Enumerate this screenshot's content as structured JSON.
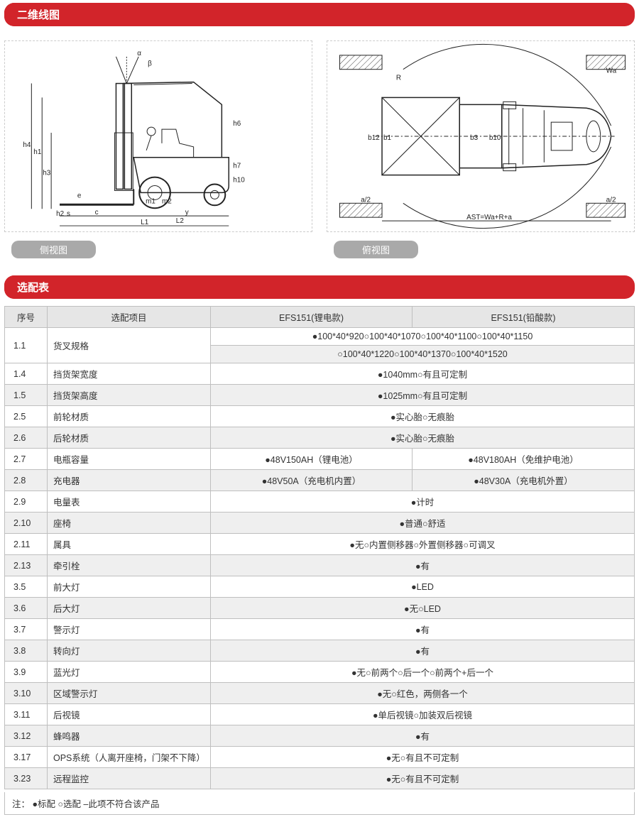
{
  "colors": {
    "header_bg": "#d2242a",
    "header_text": "#ffffff",
    "label_bg": "#a9a9a9",
    "row_alt": "#efefef",
    "border": "#bfbfbf"
  },
  "section1_title": "二维线图",
  "section2_title": "选配表",
  "side_view_label": "侧视图",
  "top_view_label": "俯视图",
  "side_dims": [
    "α",
    "β",
    "h4",
    "h1",
    "h3",
    "h6",
    "h7",
    "h10",
    "e",
    "m1",
    "m2",
    "h2",
    "s",
    "c",
    "y",
    "L2",
    "L1"
  ],
  "top_dims": [
    "R",
    "Wa",
    "b12",
    "b1",
    "b3",
    "b10",
    "a/2",
    "a/2",
    "AST=Wa+R+a"
  ],
  "table": {
    "headers": [
      "序号",
      "选配项目",
      "EFS151(锂电款)",
      "EFS151(铅酸款)"
    ],
    "rows": [
      {
        "num": "1.1",
        "item": "货叉规格",
        "colspan": true,
        "val": "●100*40*920○100*40*1070○100*40*1100○100*40*1150",
        "val2": "○100*40*1220○100*40*1370○100*40*1520",
        "rowspan": 2
      },
      {
        "num": "1.4",
        "item": "挡货架宽度",
        "colspan": true,
        "val": "●1040mm○有且可定制"
      },
      {
        "num": "1.5",
        "item": "挡货架高度",
        "colspan": true,
        "val": "●1025mm○有且可定制"
      },
      {
        "num": "2.5",
        "item": "前轮材质",
        "colspan": true,
        "val": "●实心胎○无痕胎"
      },
      {
        "num": "2.6",
        "item": "后轮材质",
        "colspan": true,
        "val": "●实心胎○无痕胎"
      },
      {
        "num": "2.7",
        "item": "电瓶容量",
        "a": "●48V150AH（锂电池）",
        "b": "●48V180AH（免维护电池）"
      },
      {
        "num": "2.8",
        "item": "充电器",
        "a": "●48V50A（充电机内置）",
        "b": "●48V30A（充电机外置）"
      },
      {
        "num": "2.9",
        "item": "电量表",
        "colspan": true,
        "val": "●计时"
      },
      {
        "num": "2.10",
        "item": "座椅",
        "colspan": true,
        "val": "●普通○舒适"
      },
      {
        "num": "2.11",
        "item": "属具",
        "colspan": true,
        "val": "●无○内置侧移器○外置侧移器○可调叉"
      },
      {
        "num": "2.13",
        "item": "牵引栓",
        "colspan": true,
        "val": "●有"
      },
      {
        "num": "3.5",
        "item": "前大灯",
        "colspan": true,
        "val": "●LED"
      },
      {
        "num": "3.6",
        "item": "后大灯",
        "colspan": true,
        "val": "●无○LED"
      },
      {
        "num": "3.7",
        "item": "警示灯",
        "colspan": true,
        "val": "●有"
      },
      {
        "num": "3.8",
        "item": "转向灯",
        "colspan": true,
        "val": "●有"
      },
      {
        "num": "3.9",
        "item": "蓝光灯",
        "colspan": true,
        "val": "●无○前两个○后一个○前两个+后一个"
      },
      {
        "num": "3.10",
        "item": "区域警示灯",
        "colspan": true,
        "val": "●无○红色，两侧各一个"
      },
      {
        "num": "3.11",
        "item": "后视镜",
        "colspan": true,
        "val": "●单后视镜○加装双后视镜"
      },
      {
        "num": "3.12",
        "item": "蜂鸣器",
        "colspan": true,
        "val": "●有"
      },
      {
        "num": "3.17",
        "item": "OPS系统（人离开座椅，门架不下降）",
        "colspan": true,
        "val": "●无○有且不可定制"
      },
      {
        "num": "3.23",
        "item": "远程监控",
        "colspan": true,
        "val": "●无○有且不可定制"
      }
    ]
  },
  "footnote": "注：  ●标配      ○选配      –此项不符合该产品"
}
